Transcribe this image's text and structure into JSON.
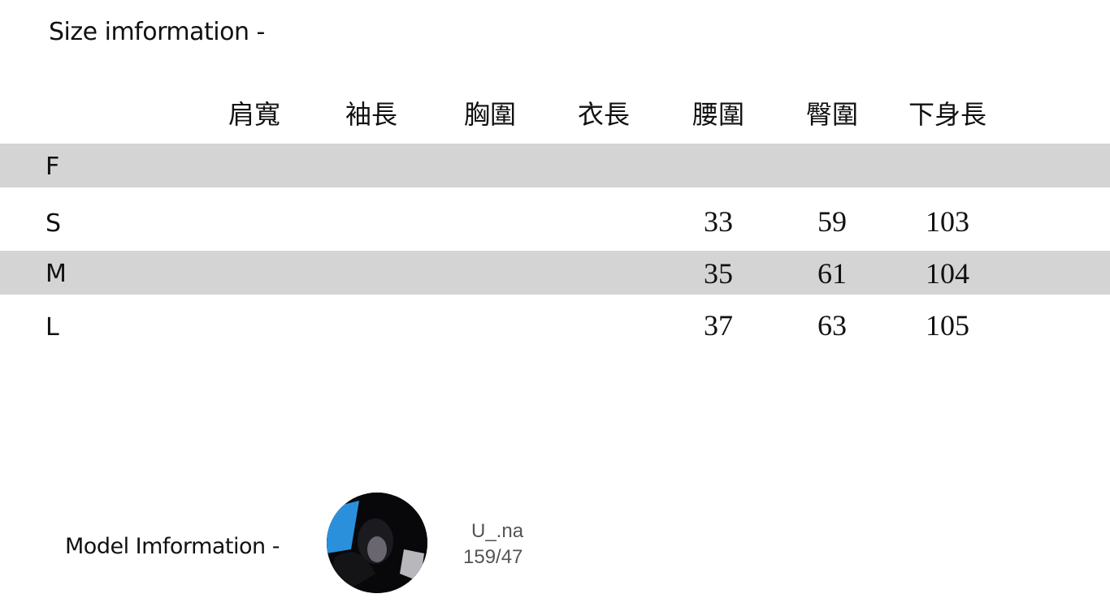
{
  "title": "Size imformation -",
  "columns": [
    "肩寬",
    "袖長",
    "胸圍",
    "衣長",
    "腰圍",
    "臀圍",
    "下身長"
  ],
  "rows": [
    {
      "size": "F",
      "values": [
        "",
        "",
        "",
        "",
        "",
        "",
        ""
      ]
    },
    {
      "size": "S",
      "values": [
        "",
        "",
        "",
        "",
        "33",
        "59",
        "103"
      ]
    },
    {
      "size": "M",
      "values": [
        "",
        "",
        "",
        "",
        "35",
        "61",
        "104"
      ]
    },
    {
      "size": "L",
      "values": [
        "",
        "",
        "",
        "",
        "37",
        "63",
        "105"
      ]
    }
  ],
  "model": {
    "label": "Model Imformation  -",
    "name": "U_.na",
    "measurements": "159/47"
  },
  "colors": {
    "band": "#d4d4d4",
    "text": "#111111",
    "model_text": "#555555"
  }
}
